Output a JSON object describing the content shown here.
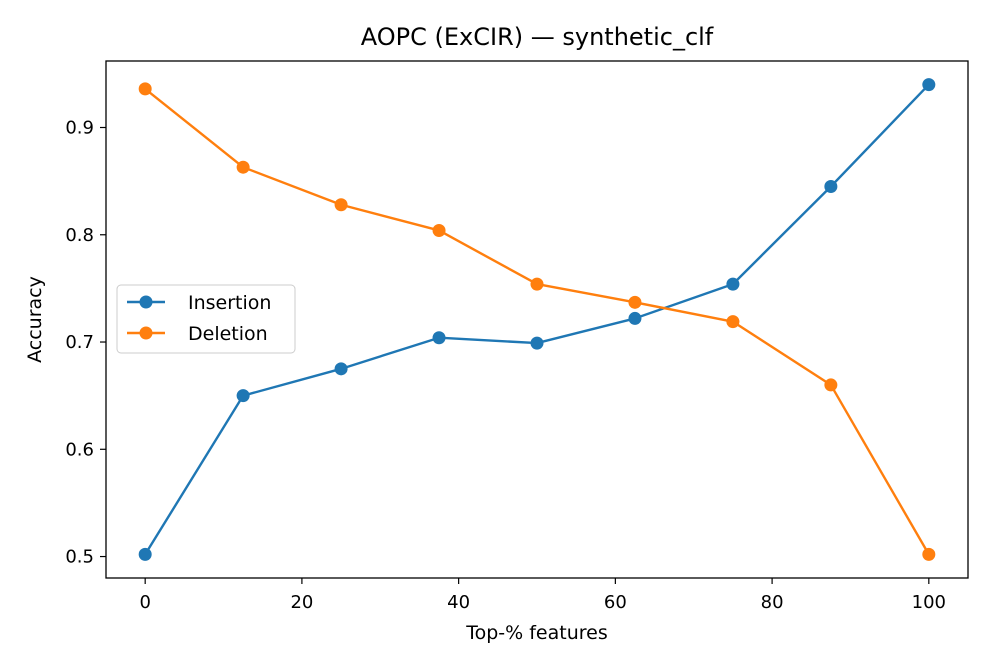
{
  "chart_data": {
    "type": "line",
    "title": "AOPC (ExCIR) — synthetic_clf",
    "xlabel": "Top-% features",
    "ylabel": "Accuracy",
    "x": [
      0,
      12.5,
      25,
      37.5,
      50,
      62.5,
      75,
      87.5,
      100
    ],
    "xlim": [
      -5,
      105
    ],
    "ylim": [
      0.48,
      0.962
    ],
    "xticks": [
      0,
      20,
      40,
      60,
      80,
      100
    ],
    "yticks": [
      0.5,
      0.6,
      0.7,
      0.8,
      0.9
    ],
    "ytick_labels": [
      "0.5",
      "0.6",
      "0.7",
      "0.8",
      "0.9"
    ],
    "grid": false,
    "legend_position": "center-left",
    "series": [
      {
        "name": "Insertion",
        "color": "#1f77b4",
        "marker": "circle",
        "values": [
          0.502,
          0.65,
          0.675,
          0.704,
          0.699,
          0.722,
          0.754,
          0.845,
          0.94
        ]
      },
      {
        "name": "Deletion",
        "color": "#ff7f0e",
        "marker": "circle",
        "values": [
          0.936,
          0.863,
          0.828,
          0.804,
          0.754,
          0.737,
          0.719,
          0.66,
          0.502
        ]
      }
    ]
  }
}
